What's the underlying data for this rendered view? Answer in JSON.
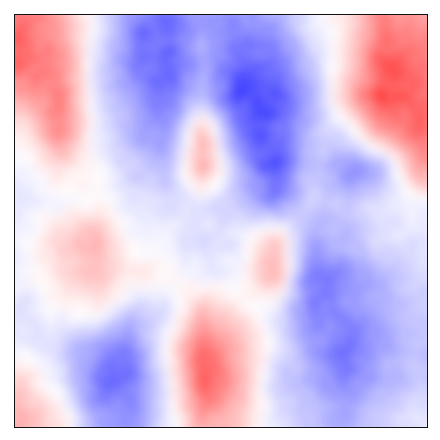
{
  "chart_data": {
    "type": "heatmap",
    "title": "",
    "xlabel": "",
    "ylabel": "",
    "grid": false,
    "legend": "none",
    "colormap": "bwr",
    "colors": {
      "low": "#0000ff",
      "mid": "#ffffff",
      "high": "#ff0000"
    },
    "value_range": [
      -1,
      1
    ],
    "grid_rows": 12,
    "grid_cols": 12,
    "values": [
      [
        0.55,
        0.35,
        -0.05,
        -0.45,
        -0.55,
        -0.35,
        -0.45,
        -0.35,
        -0.1,
        0.1,
        0.5,
        0.4
      ],
      [
        0.6,
        0.45,
        -0.1,
        -0.5,
        -0.65,
        -0.3,
        -0.6,
        -0.55,
        -0.2,
        0.1,
        0.65,
        0.55
      ],
      [
        0.35,
        0.55,
        -0.15,
        -0.35,
        -0.55,
        -0.25,
        -0.75,
        -0.65,
        -0.35,
        0.25,
        0.7,
        0.6
      ],
      [
        0.05,
        0.5,
        -0.05,
        -0.3,
        -0.45,
        0.3,
        -0.55,
        -0.6,
        -0.25,
        -0.1,
        0.4,
        0.55
      ],
      [
        -0.05,
        0.15,
        0.0,
        -0.2,
        -0.3,
        0.35,
        -0.3,
        -0.7,
        -0.2,
        -0.45,
        -0.35,
        0.4
      ],
      [
        -0.1,
        -0.05,
        0.05,
        -0.1,
        -0.15,
        -0.1,
        -0.2,
        -0.45,
        -0.15,
        -0.25,
        -0.1,
        -0.05
      ],
      [
        -0.05,
        0.2,
        0.3,
        -0.05,
        -0.05,
        -0.15,
        -0.1,
        0.25,
        -0.35,
        -0.25,
        -0.1,
        -0.1
      ],
      [
        -0.05,
        0.15,
        0.25,
        0.1,
        0.05,
        -0.1,
        -0.05,
        0.35,
        -0.5,
        -0.45,
        -0.3,
        -0.15
      ],
      [
        -0.1,
        0.0,
        0.1,
        -0.2,
        -0.15,
        0.3,
        0.1,
        -0.1,
        -0.5,
        -0.45,
        -0.3,
        -0.2
      ],
      [
        -0.1,
        -0.15,
        -0.4,
        -0.5,
        0.05,
        0.55,
        0.3,
        -0.05,
        -0.35,
        -0.6,
        -0.35,
        -0.25
      ],
      [
        0.2,
        -0.1,
        -0.55,
        -0.6,
        -0.05,
        0.65,
        0.35,
        -0.2,
        -0.3,
        -0.5,
        -0.3,
        -0.2
      ],
      [
        0.3,
        0.1,
        -0.35,
        -0.45,
        -0.1,
        0.4,
        0.2,
        -0.1,
        -0.25,
        -0.3,
        -0.2,
        -0.1
      ]
    ]
  }
}
